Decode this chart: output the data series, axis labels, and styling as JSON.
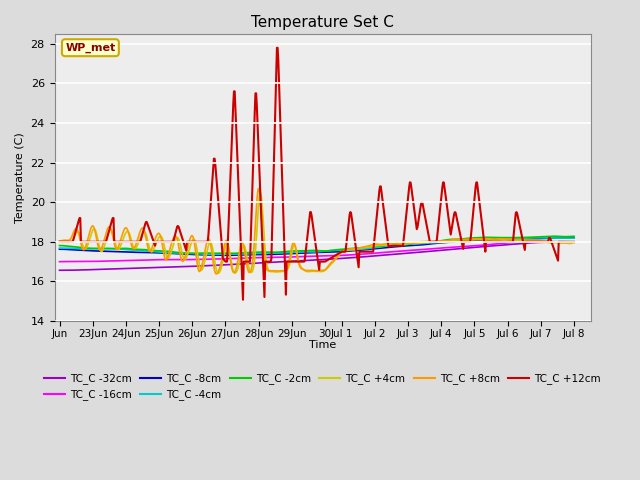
{
  "title": "Temperature Set C",
  "xlabel": "Time",
  "ylabel": "Temperature (C)",
  "ylim": [
    14,
    28.5
  ],
  "yticks": [
    14,
    16,
    18,
    20,
    22,
    24,
    26,
    28
  ],
  "background_color": "#dcdcdc",
  "series": [
    {
      "label": "TC_C -32cm",
      "color": "#9900cc",
      "lw": 1.2
    },
    {
      "label": "TC_C -16cm",
      "color": "#ff00ff",
      "lw": 1.2
    },
    {
      "label": "TC_C -8cm",
      "color": "#0000cc",
      "lw": 1.2
    },
    {
      "label": "TC_C -4cm",
      "color": "#00cccc",
      "lw": 1.2
    },
    {
      "label": "TC_C -2cm",
      "color": "#00cc00",
      "lw": 1.2
    },
    {
      "label": "TC_C +4cm",
      "color": "#cccc00",
      "lw": 1.2
    },
    {
      "label": "TC_C +8cm",
      "color": "#ff9900",
      "lw": 1.2
    },
    {
      "label": "TC_C +12cm",
      "color": "#cc0000",
      "lw": 1.5
    }
  ],
  "annotation": {
    "text": "WP_met",
    "facecolor": "#ffffcc",
    "edgecolor": "#ccaa00",
    "textcolor": "#880000",
    "fontsize": 8
  },
  "xtick_labels": [
    "Jun",
    "23Jun",
    "24Jun",
    "25Jun",
    "26Jun",
    "27Jun",
    "28Jun",
    "29Jun",
    "30",
    "Jul 1",
    "Jul 2",
    "Jul 3",
    "Jul 4",
    "Jul 5",
    "Jul 6",
    "Jul 7",
    "Jul 8"
  ],
  "xtick_positions": [
    0,
    2,
    4,
    6,
    8,
    10,
    12,
    14,
    16,
    17,
    19,
    21,
    23,
    25,
    27,
    29,
    31
  ]
}
